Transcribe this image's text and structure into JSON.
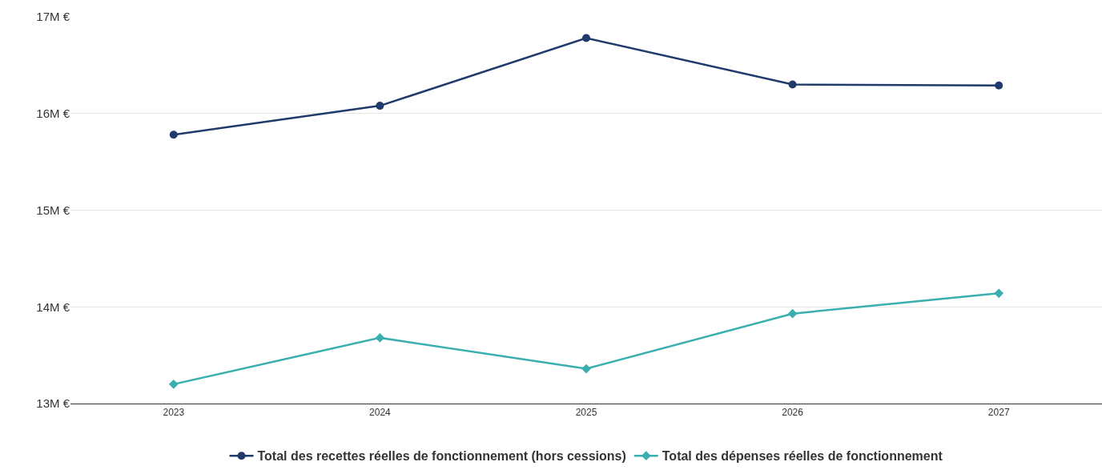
{
  "chart_data": {
    "type": "line",
    "categories": [
      "2023",
      "2024",
      "2025",
      "2026",
      "2027"
    ],
    "series": [
      {
        "name": "Total des recettes réelles de fonctionnement (hors cessions)",
        "color": "#1f3a6b",
        "marker": "circle",
        "values": [
          15.78,
          16.08,
          16.78,
          16.3,
          16.29
        ]
      },
      {
        "name": "Total des dépenses réelles de fonctionnement",
        "color": "#3aafb0",
        "marker": "diamond",
        "values": [
          13.2,
          13.68,
          13.36,
          13.93,
          14.14
        ]
      }
    ],
    "ylim": [
      13,
      17
    ],
    "yticks": [
      {
        "value": 13,
        "label": "13M €"
      },
      {
        "value": 14,
        "label": "14M €"
      },
      {
        "value": 15,
        "label": "15M €"
      },
      {
        "value": 16,
        "label": "16M €"
      },
      {
        "value": 17,
        "label": "17M €"
      }
    ],
    "grid": "y",
    "legend": "bottom",
    "line_style": "solid"
  }
}
